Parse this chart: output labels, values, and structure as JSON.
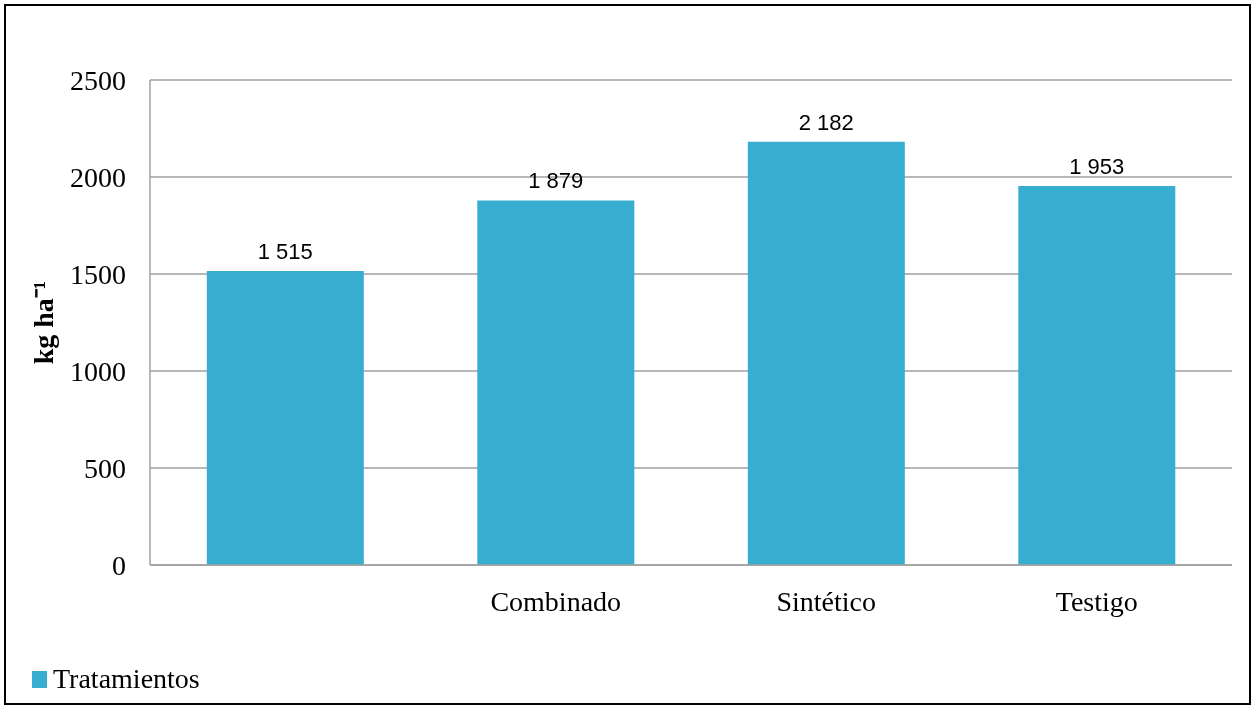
{
  "chart_data": {
    "type": "bar",
    "categories": [
      null,
      "Combinado",
      "Sintético",
      "Testigo"
    ],
    "series": [
      {
        "name": "Tratamientos",
        "color": "#37aed0",
        "values": [
          1515,
          1879,
          2182,
          1953
        ],
        "value_labels": [
          "1 515",
          "1 879",
          "2 182",
          "1 953"
        ]
      }
    ],
    "ylabel": "kg ha⁻¹",
    "ylim": [
      0,
      2500
    ],
    "yticks": [
      0,
      500,
      1000,
      1500,
      2000,
      2500
    ],
    "grid": "y",
    "legend": "bottom left"
  }
}
